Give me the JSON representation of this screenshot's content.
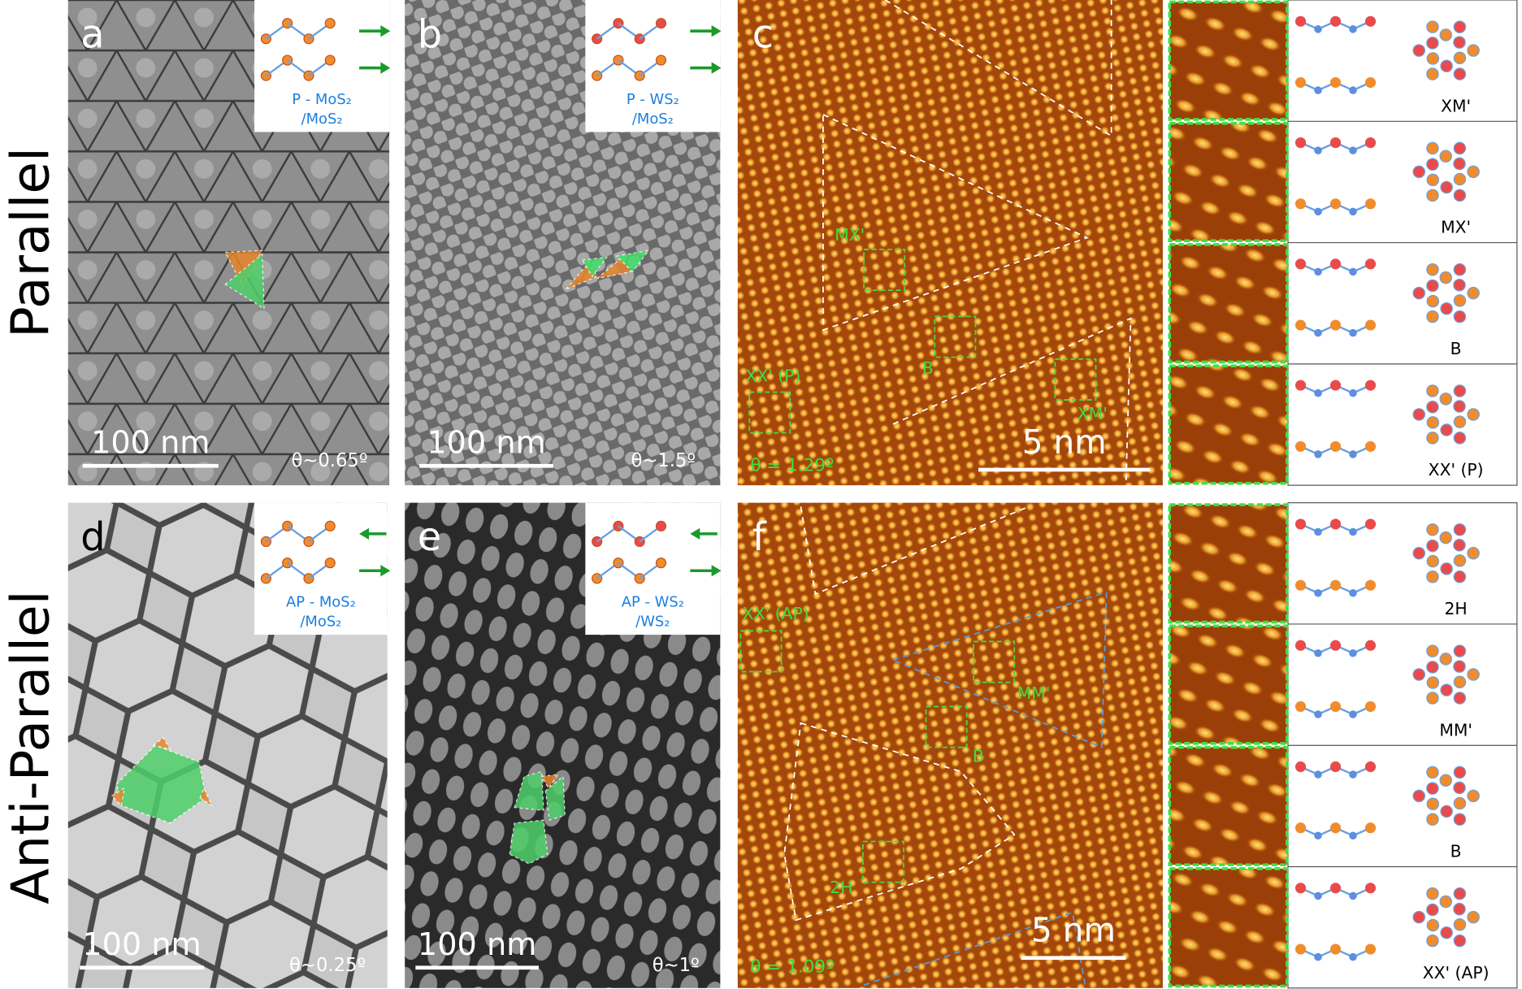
{
  "row_labels": [
    "Parallel",
    "Anti-Parallel"
  ],
  "panels": [
    {
      "letter": "a",
      "inset": [
        "P - MoS₂",
        "/MoS₂"
      ],
      "scale_bar": "100 nm",
      "angle": "θ~0.65º"
    },
    {
      "letter": "b",
      "inset": [
        "P - WS₂",
        "/MoS₂"
      ],
      "scale_bar": "100 nm",
      "angle": "θ~1.5º"
    },
    {
      "letter": "d",
      "inset": [
        "AP - MoS₂",
        "/MoS₂"
      ],
      "scale_bar": "100 nm",
      "angle": "θ~0.25º"
    },
    {
      "letter": "e",
      "inset": [
        "AP - WS₂",
        "/WS₂"
      ],
      "scale_bar": "100 nm",
      "angle": "θ~1º"
    }
  ],
  "stm": [
    {
      "letter": "c",
      "scale_bar": "5 nm",
      "angle": "θ = 1.29º",
      "regions": [
        "MX'",
        "B",
        "XX' (P)",
        "XM'"
      ]
    },
    {
      "letter": "f",
      "scale_bar": "5 nm",
      "angle": "θ = 1.09º",
      "regions": [
        "XX' (AP)",
        "MM'",
        "B",
        "2H"
      ]
    }
  ],
  "stackings": [
    [
      "XM'",
      "MX'",
      "B",
      "XX' (P)"
    ],
    [
      "2H",
      "MM'",
      "B",
      "XX' (AP)"
    ]
  ]
}
